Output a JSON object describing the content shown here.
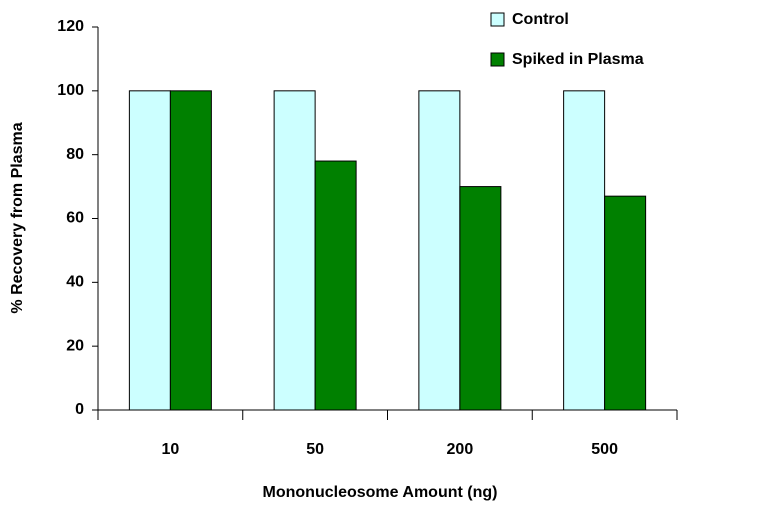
{
  "chart_data": {
    "type": "bar",
    "x_label": "Mononucleosome Amount (ng)",
    "y_label": "% Recovery from Plasma",
    "categories": [
      "10",
      "50",
      "200",
      "500"
    ],
    "series": [
      {
        "name": "Control",
        "color": "#ccffff",
        "values": [
          100,
          100,
          100,
          100
        ]
      },
      {
        "name": "Spiked in Plasma",
        "color": "#008000",
        "values": [
          100,
          78,
          70,
          67
        ]
      }
    ],
    "ylim": [
      0,
      120
    ],
    "yticks": [
      0,
      20,
      40,
      60,
      80,
      100,
      120
    ],
    "grid": false,
    "legend": "top-right"
  }
}
